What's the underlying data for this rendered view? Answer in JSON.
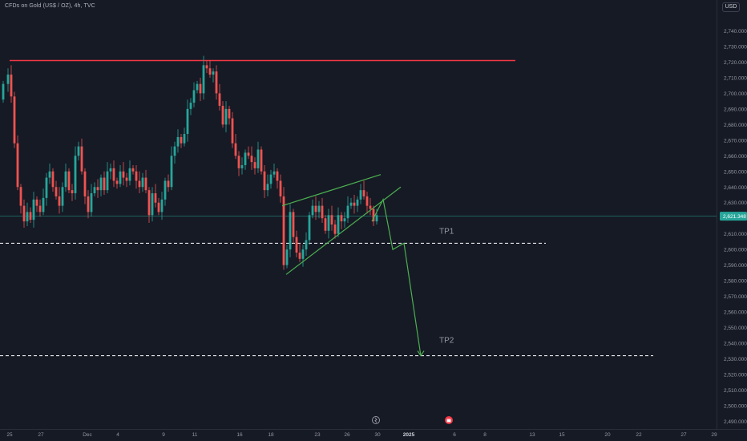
{
  "symbol_title": "CFDs on Gold (US$ / OZ), 4h, TVC",
  "currency": "USD",
  "price_tag": "2,621.348",
  "colors": {
    "background": "#161a25",
    "up": "#26a69a",
    "down": "#ef5350",
    "resistance": "#f23645",
    "pattern": "#4caf50",
    "price_line": "#26a69a",
    "tick_text": "#9598a1",
    "annotation_text": "#9598a1"
  },
  "annotations": {
    "tp1": "TP1",
    "tp2": "TP2"
  },
  "chart_data": {
    "type": "candlestick",
    "title": "CFDs on Gold (US$ / OZ), 4h, TVC",
    "timeframe": "4h",
    "y_axis_side": "right",
    "ylim": [
      2486,
      2748
    ],
    "y_ticks": [
      "2,740.000",
      "2,730.000",
      "2,720.000",
      "2,710.000",
      "2,700.000",
      "2,690.000",
      "2,680.000",
      "2,670.000",
      "2,660.000",
      "2,650.000",
      "2,640.000",
      "2,630.000",
      "2,620.000",
      "2,610.000",
      "2,600.000",
      "2,590.000",
      "2,580.000",
      "2,570.000",
      "2,560.000",
      "2,550.000",
      "2,540.000",
      "2,530.000",
      "2,520.000",
      "2,510.000",
      "2,500.000",
      "2,490.000"
    ],
    "x_ticks": [
      "25",
      "27",
      "Dec",
      "4",
      "9",
      "11",
      "16",
      "18",
      "23",
      "26",
      "30",
      "2025",
      "6",
      "8",
      "13",
      "15",
      "20",
      "22",
      "27",
      "29"
    ],
    "x_tick_bold": [
      false,
      false,
      false,
      false,
      false,
      false,
      false,
      false,
      false,
      false,
      false,
      true,
      false,
      false,
      false,
      false,
      false,
      false,
      false,
      false
    ],
    "current_price": 2621.348,
    "levels": [
      {
        "name": "resistance",
        "price": 2721,
        "style": "solid",
        "color": "#f23645"
      },
      {
        "name": "TP1",
        "price": 2604,
        "style": "dashed",
        "color": "#ffffff"
      },
      {
        "name": "TP2",
        "price": 2532,
        "style": "dashed",
        "color": "#ffffff"
      }
    ],
    "rising_wedge": {
      "upper_price_start": 2628,
      "upper_price_end": 2648,
      "lower_price_start": 2584,
      "lower_price_end": 2640
    },
    "projection_prices": [
      2632,
      2600,
      2604,
      2532
    ],
    "grid": false,
    "legend": "none"
  }
}
